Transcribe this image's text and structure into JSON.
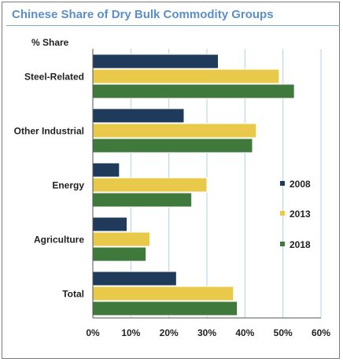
{
  "chart_data": {
    "type": "bar",
    "orientation": "horizontal",
    "title": "Chinese Share of Dry Bulk Commodity Groups",
    "ylabel": "% Share",
    "categories": [
      "Steel-Related",
      "Other Industrial",
      "Energy",
      "Agriculture",
      "Total"
    ],
    "series": [
      {
        "name": "2008",
        "color": "#1f3a5a",
        "values": [
          33,
          24,
          7,
          9,
          22
        ]
      },
      {
        "name": "2013",
        "color": "#e9c94a",
        "values": [
          49,
          43,
          30,
          15,
          37
        ]
      },
      {
        "name": "2018",
        "color": "#3f7a3c",
        "values": [
          53,
          42,
          26,
          14,
          38
        ]
      }
    ],
    "xlim": [
      0,
      60
    ],
    "xticks": [
      0,
      10,
      20,
      30,
      40,
      50,
      60
    ],
    "tick_suffix": "%",
    "grid": "vertical",
    "grid_color": "#a9d4e6",
    "legend_position": "right"
  }
}
